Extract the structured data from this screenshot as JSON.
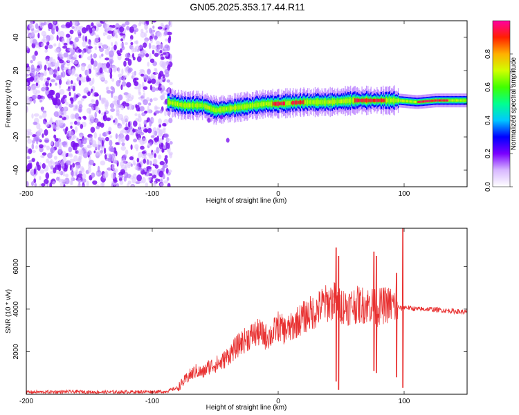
{
  "title": "GN05.2025.353.17.44.R11",
  "chart_data": [
    {
      "type": "heatmap",
      "name": "spectrogram",
      "xlabel": "Height of straight line (km)",
      "ylabel": "Frequency (Hz)",
      "xlim": [
        -200,
        150
      ],
      "ylim": [
        -50,
        50
      ],
      "x_ticks": [
        -200,
        -100,
        0,
        100
      ],
      "y_ticks": [
        -40,
        -20,
        0,
        20,
        40
      ],
      "colorbar": {
        "label": "Normalized spectral amplitude",
        "range": [
          0,
          1
        ],
        "ticks": [
          0.0,
          0.2,
          0.4,
          0.6,
          0.8
        ],
        "colors": [
          "#ffffff",
          "#d8b8ff",
          "#7a00ff",
          "#0000ff",
          "#00c8ff",
          "#00ff90",
          "#40ff00",
          "#d0ff00",
          "#ffb000",
          "#ff2000",
          "#ff00a0"
        ]
      },
      "description_points": {
        "noise_region_x": [
          -200,
          -85
        ],
        "signal_start_x": -88,
        "signal_center_freq_hz": [
          [
            -88,
            1
          ],
          [
            -75,
            -1
          ],
          [
            -60,
            -1
          ],
          [
            -50,
            -4
          ],
          [
            -40,
            -3
          ],
          [
            -30,
            -2
          ],
          [
            -20,
            -1
          ],
          [
            -10,
            0
          ],
          [
            0,
            0
          ],
          [
            20,
            1
          ],
          [
            40,
            1
          ],
          [
            60,
            2
          ],
          [
            80,
            2
          ],
          [
            95,
            2
          ],
          [
            110,
            1
          ],
          [
            125,
            2
          ],
          [
            150,
            2
          ]
        ],
        "peak_amplitude_segments": [
          [
            -5,
            5
          ],
          [
            10,
            20
          ],
          [
            60,
            85
          ],
          [
            110,
            135
          ]
        ]
      }
    },
    {
      "type": "line",
      "name": "snr",
      "xlabel": "Height of straight line (km)",
      "ylabel": "SNR (10 * v/v)",
      "xlim": [
        -200,
        150
      ],
      "ylim": [
        0,
        7800
      ],
      "x_ticks": [
        -200,
        -100,
        0,
        100
      ],
      "y_ticks": [
        2000,
        4000,
        6000
      ],
      "color": "#e83030",
      "series": [
        {
          "name": "SNR",
          "x": [
            -200,
            -180,
            -160,
            -140,
            -120,
            -100,
            -90,
            -80,
            -75,
            -70,
            -65,
            -60,
            -55,
            -50,
            -45,
            -40,
            -35,
            -30,
            -25,
            -20,
            -15,
            -10,
            -5,
            0,
            5,
            10,
            15,
            20,
            25,
            30,
            35,
            40,
            45,
            48,
            50,
            55,
            60,
            65,
            70,
            75,
            78,
            80,
            85,
            90,
            95,
            99,
            100,
            105,
            110,
            120,
            130,
            140,
            150
          ],
          "values": [
            100,
            110,
            120,
            100,
            110,
            120,
            120,
            300,
            600,
            900,
            1100,
            1000,
            1300,
            1400,
            1500,
            1800,
            2100,
            2400,
            2600,
            2800,
            2900,
            2700,
            2800,
            3200,
            3000,
            3100,
            3400,
            3600,
            3800,
            3900,
            4200,
            4300,
            4400,
            4100,
            4200,
            4100,
            4200,
            4200,
            4200,
            4200,
            4000,
            4100,
            4200,
            4200,
            4100,
            4000,
            4100,
            4050,
            4000,
            4000,
            3950,
            3900,
            3850
          ]
        }
      ],
      "spikes": [
        {
          "x": 46,
          "values": [
            6900,
            600
          ]
        },
        {
          "x": 48,
          "values": [
            6500,
            200
          ]
        },
        {
          "x": 76,
          "values": [
            6700,
            1100
          ]
        },
        {
          "x": 78,
          "values": [
            6500,
            1000
          ]
        },
        {
          "x": 94,
          "values": [
            5700,
            800
          ]
        },
        {
          "x": 99,
          "values": [
            7800,
            300
          ]
        }
      ]
    }
  ]
}
